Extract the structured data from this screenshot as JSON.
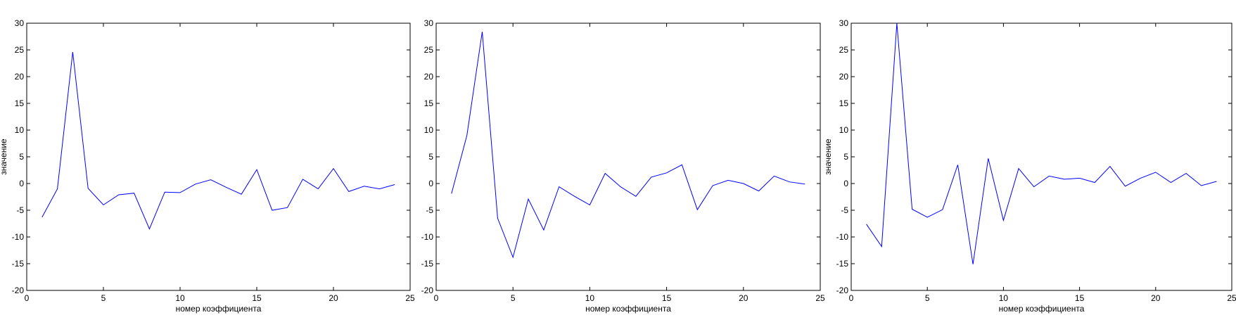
{
  "colors": {
    "line": "#0000ff",
    "axes": "#000000",
    "background": "#ffffff"
  },
  "chart_data": [
    {
      "type": "line",
      "title": "",
      "xlabel": "номер коэффициента",
      "ylabel": "значение",
      "xlim": [
        0,
        25
      ],
      "ylim": [
        -20,
        30
      ],
      "xticks": [
        0,
        5,
        10,
        15,
        20,
        25
      ],
      "yticks": [
        -20,
        -15,
        -10,
        -5,
        0,
        5,
        10,
        15,
        20,
        25,
        30
      ],
      "grid": false,
      "x": [
        1,
        2,
        3,
        4,
        5,
        6,
        7,
        8,
        9,
        10,
        11,
        12,
        13,
        14,
        15,
        16,
        17,
        18,
        19,
        20,
        21,
        22,
        23,
        24
      ],
      "series": [
        {
          "values": [
            -6.3,
            -1.0,
            24.6,
            -0.9,
            -4.0,
            -2.1,
            -1.8,
            -8.5,
            -1.6,
            -1.7,
            -0.1,
            0.7,
            -0.7,
            -2.0,
            2.6,
            -5.0,
            -4.5,
            0.8,
            -1.0,
            2.8,
            -1.5,
            -0.5,
            -1.0,
            -0.2
          ]
        }
      ]
    },
    {
      "type": "line",
      "title": "",
      "xlabel": "номер коэффициента",
      "ylabel": "",
      "xlim": [
        0,
        25
      ],
      "ylim": [
        -20,
        30
      ],
      "xticks": [
        0,
        5,
        10,
        15,
        20,
        25
      ],
      "yticks": [
        -20,
        -15,
        -10,
        -5,
        0,
        5,
        10,
        15,
        20,
        25,
        30
      ],
      "grid": false,
      "x": [
        1,
        2,
        3,
        4,
        5,
        6,
        7,
        8,
        9,
        10,
        11,
        12,
        13,
        14,
        15,
        16,
        17,
        18,
        19,
        20,
        21,
        22,
        23,
        24
      ],
      "series": [
        {
          "values": [
            -1.9,
            9.0,
            28.4,
            -6.5,
            -13.8,
            -2.9,
            -8.7,
            -0.6,
            -2.4,
            -4.0,
            1.9,
            -0.6,
            -2.4,
            1.2,
            2.0,
            3.5,
            -4.9,
            -0.4,
            0.6,
            0.0,
            -1.4,
            1.4,
            0.3,
            -0.1
          ]
        }
      ]
    },
    {
      "type": "line",
      "title": "",
      "xlabel": "номер коэффициента",
      "ylabel": "значение",
      "xlim": [
        0,
        25
      ],
      "ylim": [
        -20,
        30
      ],
      "xticks": [
        0,
        5,
        10,
        15,
        20,
        25
      ],
      "yticks": [
        -20,
        -15,
        -10,
        -5,
        0,
        5,
        10,
        15,
        20,
        25,
        30
      ],
      "grid": false,
      "x": [
        1,
        2,
        3,
        4,
        5,
        6,
        7,
        8,
        9,
        10,
        11,
        12,
        13,
        14,
        15,
        16,
        17,
        18,
        19,
        20,
        21,
        22,
        23,
        24
      ],
      "series": [
        {
          "values": [
            -7.6,
            -11.8,
            30.0,
            -4.8,
            -6.3,
            -4.9,
            3.5,
            -15.1,
            4.7,
            -6.9,
            2.8,
            -0.6,
            1.4,
            0.8,
            1.0,
            0.2,
            3.2,
            -0.5,
            1.0,
            2.1,
            0.2,
            1.9,
            -0.4,
            0.4
          ]
        }
      ]
    }
  ]
}
